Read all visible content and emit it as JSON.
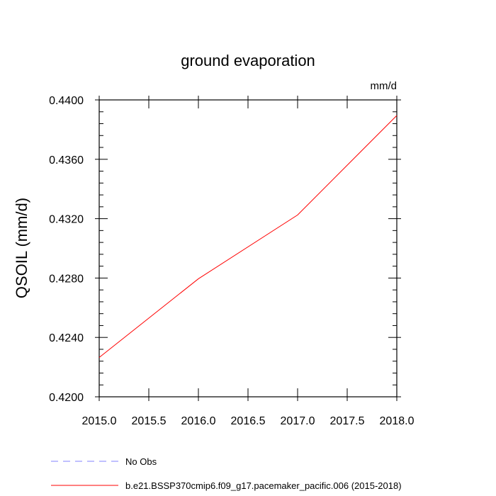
{
  "chart_data": {
    "type": "line",
    "title": "ground evaporation",
    "units": "mm/d",
    "ylabel": "QSOIL  (mm/d)",
    "xlabel": "",
    "xlim": [
      2015.0,
      2018.0
    ],
    "ylim": [
      0.42,
      0.44
    ],
    "x_ticks": [
      2015.0,
      2015.5,
      2016.0,
      2016.5,
      2017.0,
      2017.5,
      2018.0
    ],
    "x_tick_labels": [
      "2015.0",
      "2015.5",
      "2016.0",
      "2016.5",
      "2017.0",
      "2017.5",
      "2018.0"
    ],
    "y_ticks": [
      0.42,
      0.424,
      0.428,
      0.432,
      0.436,
      0.44
    ],
    "y_tick_labels": [
      "0.4200",
      "0.4240",
      "0.4280",
      "0.4320",
      "0.4360",
      "0.4400"
    ],
    "grid": false,
    "legend_position": "bottom",
    "series": [
      {
        "name": "b.e21.BSSP370cmip6.f09_g17.pacemaker_pacific.006 (2015-2018)",
        "color": "#ff0000",
        "dash": "solid",
        "x": [
          2015.0,
          2016.0,
          2017.0,
          2018.0
        ],
        "y": [
          0.42265,
          0.42795,
          0.43225,
          0.43895
        ]
      }
    ],
    "legend": [
      {
        "name": "No Obs",
        "color": "#8080ff",
        "dash": "dashed"
      },
      {
        "name": "b.e21.BSSP370cmip6.f09_g17.pacemaker_pacific.006 (2015-2018)",
        "color": "#ff0000",
        "dash": "solid"
      }
    ]
  }
}
